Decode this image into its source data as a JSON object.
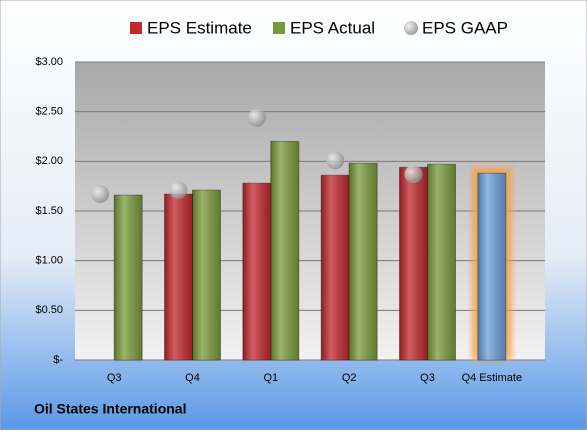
{
  "chart_data": {
    "type": "bar",
    "categories": [
      "Q3",
      "Q4",
      "Q1",
      "Q2",
      "Q3",
      "Q4 Estimate"
    ],
    "series": [
      {
        "name": "EPS Estimate",
        "color": "#c0282d",
        "point_colors": [
          null,
          "#c0282d",
          "#c0282d",
          "#c0282d",
          "#c0282d",
          "#6d9fd8"
        ],
        "values": [
          null,
          1.67,
          1.78,
          1.86,
          1.94,
          1.88
        ]
      },
      {
        "name": "EPS Actual",
        "color": "#7a9a3a",
        "values": [
          1.66,
          1.71,
          2.2,
          1.98,
          1.97,
          null
        ]
      },
      {
        "name": "EPS GAAP",
        "color": "#a8a8a8",
        "marker": "circle",
        "values": [
          1.67,
          1.71,
          2.44,
          2.01,
          1.87,
          null
        ]
      }
    ],
    "ylim": [
      0,
      3
    ],
    "yticks": [
      {
        "value": 0,
        "label": "$-"
      },
      {
        "value": 0.5,
        "label": "$0.50"
      },
      {
        "value": 1,
        "label": "$1.00"
      },
      {
        "value": 1.5,
        "label": "$1.50"
      },
      {
        "value": 2,
        "label": "$2.00"
      },
      {
        "value": 2.5,
        "label": "$2.50"
      },
      {
        "value": 3,
        "label": "$3.00"
      }
    ],
    "grid": true,
    "legend": "top",
    "company": "Oil States International"
  }
}
